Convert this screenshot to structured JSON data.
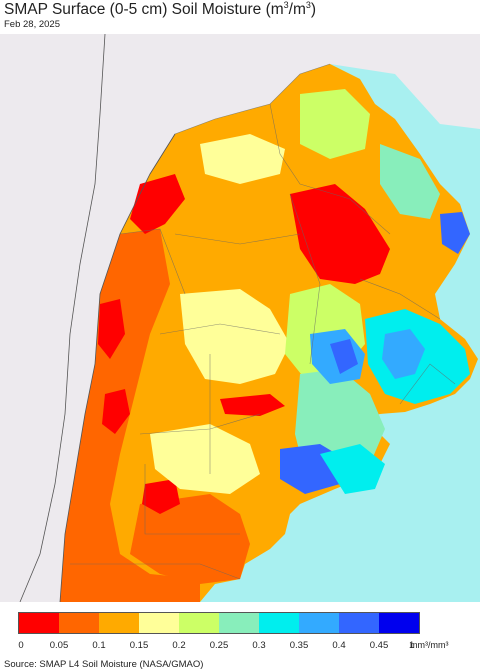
{
  "header": {
    "title_main": "SMAP Surface (0-5 cm) Soil Moisture (m",
    "title_sup1": "3",
    "title_mid": "/m",
    "title_sup2": "3",
    "title_end": ")",
    "date": "Feb 28, 2025"
  },
  "legend": {
    "colors": [
      "#ff0000",
      "#ff6600",
      "#ffaa00",
      "#ffff99",
      "#ccff66",
      "#88eebb",
      "#00eeee",
      "#33aaff",
      "#3366ff",
      "#0000ee"
    ],
    "ticks": [
      "0",
      "0.05",
      "0.1",
      "0.15",
      "0.2",
      "0.25",
      "0.3",
      "0.35",
      "0.4",
      "0.45",
      "1"
    ],
    "unit": "mm³/mm³"
  },
  "footer": {
    "source": "Source: SMAP L4 Soil Moisture (NASA/GMAO)"
  },
  "map_colors": {
    "ocean": "#a8f0f0",
    "outside_land": "#edeaee",
    "very_dry": "#ff0000",
    "dry": "#ff6600",
    "moderate": "#ffaa00",
    "light": "#ffff99",
    "green": "#ccff66",
    "teal": "#88eebb",
    "cyan": "#00eeee",
    "blue": "#33aaff",
    "dark_blue": "#3366ff"
  }
}
